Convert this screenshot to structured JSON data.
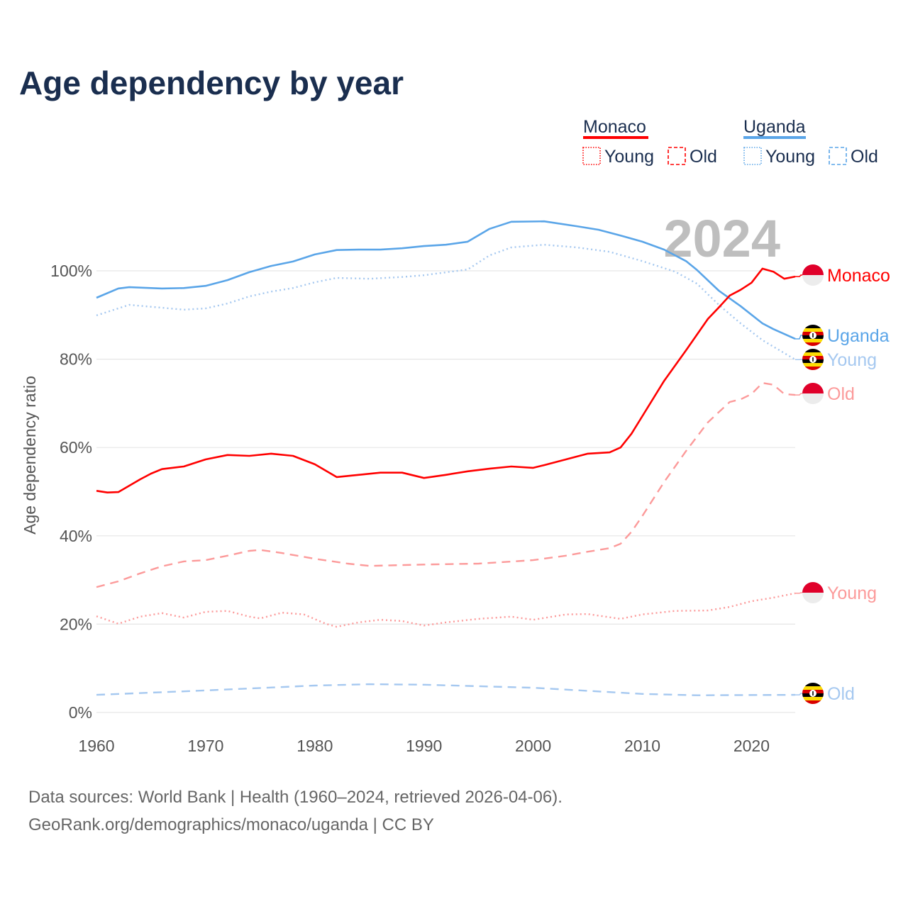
{
  "title": "Age dependency by year",
  "year_watermark": "2024",
  "legend": {
    "groups": [
      {
        "name": "Monaco",
        "color": "#ff0000",
        "young_label": "Young",
        "old_label": "Old"
      },
      {
        "name": "Uganda",
        "color": "#5aa5e8",
        "young_label": "Young",
        "old_label": "Old"
      }
    ]
  },
  "footer": {
    "line1": "Data sources: World Bank | Health (1960–2024, retrieved 2026-04-06).",
    "line2": "GeoRank.org/demographics/monaco/uganda | CC BY"
  },
  "end_labels": {
    "monaco_total": "Monaco",
    "uganda_total": "Uganda",
    "uganda_young": "Young",
    "monaco_old": "Old",
    "monaco_young": "Young",
    "uganda_old": "Old"
  },
  "chart_data": {
    "type": "line",
    "title": "Age dependency by year",
    "xlabel": "",
    "ylabel": "Age dependency ratio",
    "xlim": [
      1960,
      2024
    ],
    "ylim": [
      0,
      110
    ],
    "x_ticks": [
      "1960",
      "1970",
      "1980",
      "1990",
      "2000",
      "2010",
      "2020"
    ],
    "y_ticks": [
      "0%",
      "20%",
      "40%",
      "60%",
      "80%",
      "100%"
    ],
    "grid": true,
    "legend_position": "top-right",
    "series": [
      {
        "key": "monaco_total",
        "name": "Monaco",
        "style": "solid",
        "color": "#ff0000",
        "points": [
          [
            1960,
            50.2
          ],
          [
            1961,
            49.8
          ],
          [
            1962,
            49.9
          ],
          [
            1964,
            52.8
          ],
          [
            1965,
            54.1
          ],
          [
            1966,
            55.1
          ],
          [
            1968,
            55.7
          ],
          [
            1970,
            57.3
          ],
          [
            1972,
            58.3
          ],
          [
            1974,
            58.1
          ],
          [
            1976,
            58.6
          ],
          [
            1978,
            58.1
          ],
          [
            1980,
            56.2
          ],
          [
            1982,
            53.3
          ],
          [
            1984,
            53.8
          ],
          [
            1986,
            54.3
          ],
          [
            1988,
            54.3
          ],
          [
            1990,
            53.1
          ],
          [
            1992,
            53.8
          ],
          [
            1994,
            54.6
          ],
          [
            1996,
            55.2
          ],
          [
            1998,
            55.7
          ],
          [
            2000,
            55.4
          ],
          [
            2001,
            56.0
          ],
          [
            2003,
            57.3
          ],
          [
            2005,
            58.6
          ],
          [
            2007,
            58.9
          ],
          [
            2008,
            60.0
          ],
          [
            2009,
            63.1
          ],
          [
            2010,
            67.1
          ],
          [
            2012,
            75.1
          ],
          [
            2014,
            82.0
          ],
          [
            2016,
            89.1
          ],
          [
            2017,
            91.7
          ],
          [
            2018,
            94.4
          ],
          [
            2019,
            95.7
          ],
          [
            2020,
            97.3
          ],
          [
            2021,
            100.5
          ],
          [
            2022,
            99.8
          ],
          [
            2023,
            98.2
          ],
          [
            2024,
            98.7
          ]
        ]
      },
      {
        "key": "monaco_old",
        "name": "Monaco Old",
        "style": "dashed",
        "color": "#fc9a9a",
        "points": [
          [
            1960,
            28.4
          ],
          [
            1962,
            29.7
          ],
          [
            1964,
            31.5
          ],
          [
            1966,
            33.1
          ],
          [
            1968,
            34.2
          ],
          [
            1970,
            34.5
          ],
          [
            1972,
            35.5
          ],
          [
            1974,
            36.6
          ],
          [
            1975,
            36.8
          ],
          [
            1977,
            36.1
          ],
          [
            1980,
            34.8
          ],
          [
            1983,
            33.7
          ],
          [
            1985,
            33.2
          ],
          [
            1990,
            33.5
          ],
          [
            1995,
            33.7
          ],
          [
            2000,
            34.5
          ],
          [
            2003,
            35.5
          ],
          [
            2005,
            36.4
          ],
          [
            2007,
            37.2
          ],
          [
            2008,
            38.2
          ],
          [
            2009,
            40.9
          ],
          [
            2010,
            44.5
          ],
          [
            2012,
            52.2
          ],
          [
            2014,
            59.2
          ],
          [
            2016,
            65.7
          ],
          [
            2018,
            70.3
          ],
          [
            2019,
            70.9
          ],
          [
            2020,
            72.1
          ],
          [
            2021,
            74.6
          ],
          [
            2022,
            74.2
          ],
          [
            2023,
            72.1
          ],
          [
            2024,
            71.9
          ]
        ]
      },
      {
        "key": "monaco_young",
        "name": "Monaco Young",
        "style": "dotted",
        "color": "#fc9a9a",
        "points": [
          [
            1960,
            21.8
          ],
          [
            1962,
            20.1
          ],
          [
            1964,
            21.7
          ],
          [
            1966,
            22.5
          ],
          [
            1968,
            21.5
          ],
          [
            1970,
            22.8
          ],
          [
            1972,
            23.0
          ],
          [
            1974,
            21.7
          ],
          [
            1975,
            21.3
          ],
          [
            1977,
            22.6
          ],
          [
            1979,
            22.2
          ],
          [
            1981,
            20.1
          ],
          [
            1982,
            19.4
          ],
          [
            1984,
            20.4
          ],
          [
            1986,
            21.0
          ],
          [
            1988,
            20.7
          ],
          [
            1990,
            19.7
          ],
          [
            1992,
            20.4
          ],
          [
            1995,
            21.2
          ],
          [
            1998,
            21.7
          ],
          [
            2000,
            21.0
          ],
          [
            2003,
            22.2
          ],
          [
            2005,
            22.3
          ],
          [
            2008,
            21.2
          ],
          [
            2010,
            22.2
          ],
          [
            2013,
            23.0
          ],
          [
            2016,
            23.1
          ],
          [
            2018,
            23.9
          ],
          [
            2020,
            25.2
          ],
          [
            2022,
            26.0
          ],
          [
            2024,
            27.0
          ]
        ]
      },
      {
        "key": "uganda_total",
        "name": "Uganda",
        "style": "solid",
        "color": "#5aa5e8",
        "points": [
          [
            1960,
            93.9
          ],
          [
            1962,
            96.0
          ],
          [
            1963,
            96.3
          ],
          [
            1966,
            96.0
          ],
          [
            1968,
            96.1
          ],
          [
            1970,
            96.6
          ],
          [
            1972,
            97.9
          ],
          [
            1974,
            99.7
          ],
          [
            1976,
            101.1
          ],
          [
            1978,
            102.1
          ],
          [
            1980,
            103.7
          ],
          [
            1982,
            104.7
          ],
          [
            1984,
            104.8
          ],
          [
            1986,
            104.8
          ],
          [
            1988,
            105.1
          ],
          [
            1990,
            105.6
          ],
          [
            1992,
            105.9
          ],
          [
            1994,
            106.6
          ],
          [
            1996,
            109.5
          ],
          [
            1998,
            111.1
          ],
          [
            2001,
            111.2
          ],
          [
            2004,
            110.1
          ],
          [
            2006,
            109.3
          ],
          [
            2008,
            108.0
          ],
          [
            2010,
            106.6
          ],
          [
            2012,
            104.8
          ],
          [
            2014,
            102.2
          ],
          [
            2015,
            100.2
          ],
          [
            2017,
            95.5
          ],
          [
            2019,
            92.0
          ],
          [
            2021,
            88.1
          ],
          [
            2022,
            86.8
          ],
          [
            2024,
            84.6
          ]
        ]
      },
      {
        "key": "uganda_young",
        "name": "Uganda Young",
        "style": "dotted",
        "color": "#a5c8f0",
        "points": [
          [
            1960,
            89.9
          ],
          [
            1963,
            92.3
          ],
          [
            1968,
            91.2
          ],
          [
            1970,
            91.5
          ],
          [
            1972,
            92.6
          ],
          [
            1974,
            94.2
          ],
          [
            1976,
            95.3
          ],
          [
            1978,
            96.1
          ],
          [
            1980,
            97.4
          ],
          [
            1982,
            98.4
          ],
          [
            1985,
            98.2
          ],
          [
            1988,
            98.6
          ],
          [
            1990,
            99.0
          ],
          [
            1994,
            100.3
          ],
          [
            1996,
            103.5
          ],
          [
            1998,
            105.3
          ],
          [
            2001,
            105.9
          ],
          [
            2004,
            105.3
          ],
          [
            2007,
            104.3
          ],
          [
            2010,
            102.2
          ],
          [
            2013,
            99.8
          ],
          [
            2015,
            97.1
          ],
          [
            2017,
            92.3
          ],
          [
            2019,
            88.1
          ],
          [
            2021,
            84.3
          ],
          [
            2024,
            79.9
          ]
        ]
      },
      {
        "key": "uganda_old",
        "name": "Uganda Old",
        "style": "dashed",
        "color": "#a5c8f0",
        "points": [
          [
            1960,
            4.0
          ],
          [
            1970,
            5.0
          ],
          [
            1980,
            6.1
          ],
          [
            1985,
            6.4
          ],
          [
            1990,
            6.3
          ],
          [
            2000,
            5.6
          ],
          [
            2010,
            4.2
          ],
          [
            2015,
            3.9
          ],
          [
            2024,
            4.0
          ]
        ]
      }
    ]
  }
}
